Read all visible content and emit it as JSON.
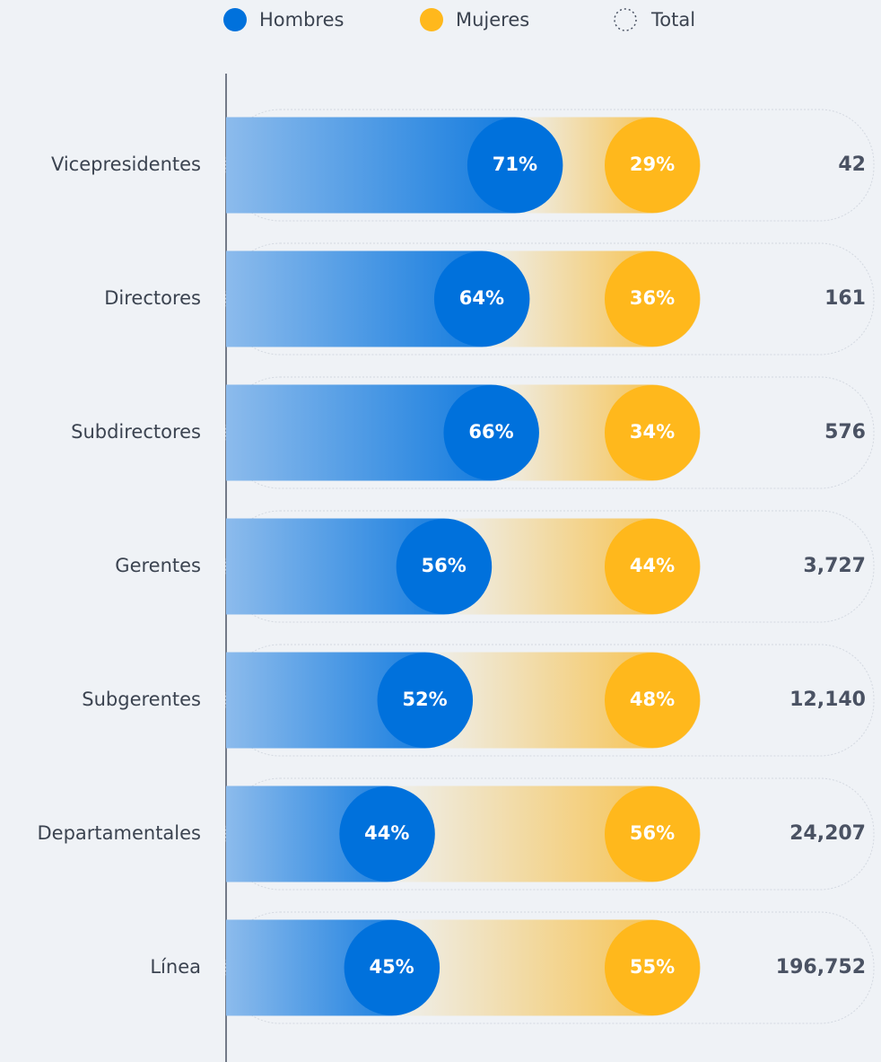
{
  "chart_data": {
    "type": "bar",
    "categories": [
      "Vicepresidentes",
      "Directores",
      "Subdirectores",
      "Gerentes",
      "Subgerentes",
      "Departamentales",
      "Línea"
    ],
    "series": [
      {
        "name": "Hombres",
        "color": "#0071dc",
        "values": [
          71,
          64,
          66,
          56,
          52,
          44,
          45
        ],
        "value_labels": [
          "71%",
          "64%",
          "66%",
          "56%",
          "52%",
          "44%",
          "45%"
        ]
      },
      {
        "name": "Mujeres",
        "color": "#ffb81c",
        "values": [
          29,
          36,
          34,
          44,
          48,
          56,
          55
        ],
        "value_labels": [
          "29%",
          "36%",
          "34%",
          "44%",
          "48%",
          "56%",
          "55%"
        ]
      }
    ],
    "total": {
      "name": "Total",
      "values": [
        42,
        161,
        576,
        3727,
        12140,
        24207,
        196752
      ],
      "value_labels": [
        "42",
        "161",
        "576",
        "3,727",
        "12,140",
        "24,207",
        "196,752"
      ]
    }
  }
}
